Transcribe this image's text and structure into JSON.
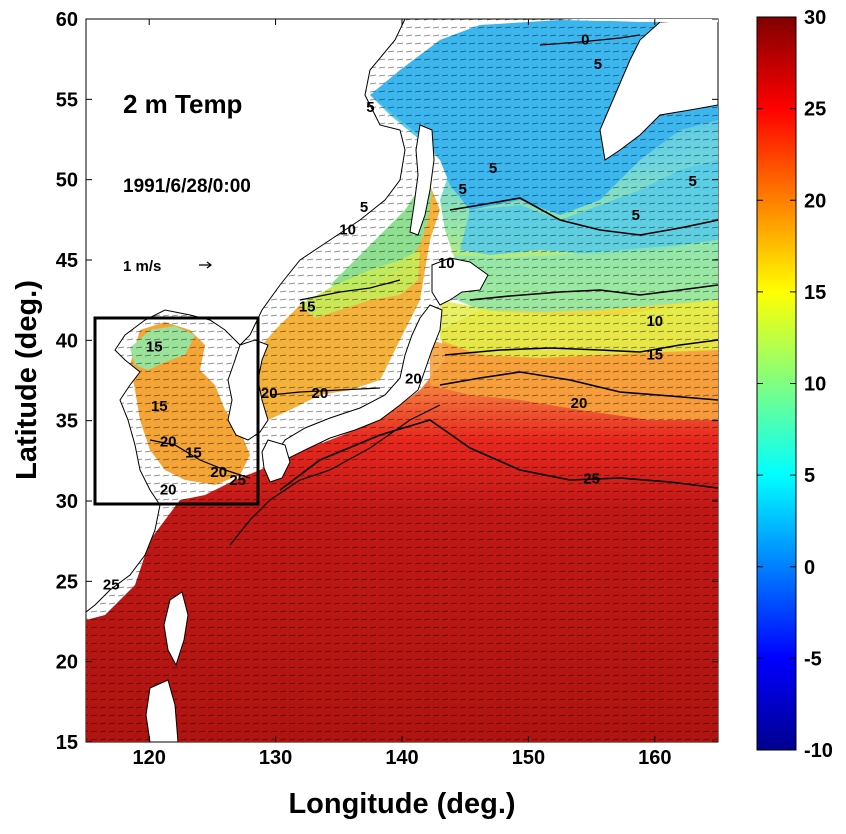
{
  "chart_data": {
    "type": "heatmap",
    "title": "2 m Temp",
    "subtitle": "1991/6/28/0:00",
    "xlabel": "Longitude (deg.)",
    "ylabel": "Latitude (deg.)",
    "xlim": [
      115,
      165
    ],
    "ylim": [
      15,
      60
    ],
    "xticks": [
      120,
      130,
      140,
      150,
      160
    ],
    "yticks": [
      15,
      20,
      25,
      30,
      35,
      40,
      45,
      50,
      55,
      60
    ],
    "vector_scale_label": "1 m/s",
    "colorbar": {
      "range": [
        -10,
        30
      ],
      "ticks": [
        -10,
        -5,
        0,
        5,
        10,
        15,
        20,
        25,
        30
      ],
      "colormap": "jet",
      "colors": [
        "#00008f",
        "#0000ff",
        "#00ffff",
        "#ffff00",
        "#ff0000",
        "#800000"
      ]
    },
    "contour_labels": [
      {
        "text": "0",
        "lon": 154.5,
        "lat": 58.4
      },
      {
        "text": "5",
        "lon": 155.5,
        "lat": 56.9
      },
      {
        "text": "5",
        "lon": 137.5,
        "lat": 54.2
      },
      {
        "text": "5",
        "lon": 147.2,
        "lat": 50.4
      },
      {
        "text": "5",
        "lon": 144.8,
        "lat": 49.1
      },
      {
        "text": "5",
        "lon": 163.0,
        "lat": 49.6
      },
      {
        "text": "5",
        "lon": 158.5,
        "lat": 47.5
      },
      {
        "text": "5",
        "lon": 137.0,
        "lat": 48.0
      },
      {
        "text": "10",
        "lon": 135.7,
        "lat": 46.6
      },
      {
        "text": "10",
        "lon": 143.5,
        "lat": 44.5
      },
      {
        "text": "10",
        "lon": 160.0,
        "lat": 40.9
      },
      {
        "text": "15",
        "lon": 132.5,
        "lat": 41.8
      },
      {
        "text": "15",
        "lon": 160.0,
        "lat": 38.8
      },
      {
        "text": "15",
        "lon": 120.4,
        "lat": 39.3
      },
      {
        "text": "15",
        "lon": 120.8,
        "lat": 35.6
      },
      {
        "text": "15",
        "lon": 123.5,
        "lat": 32.7
      },
      {
        "text": "20",
        "lon": 140.9,
        "lat": 37.3
      },
      {
        "text": "20",
        "lon": 154.0,
        "lat": 35.8
      },
      {
        "text": "20",
        "lon": 129.5,
        "lat": 36.4
      },
      {
        "text": "20",
        "lon": 133.5,
        "lat": 36.4
      },
      {
        "text": "20",
        "lon": 121.5,
        "lat": 33.4
      },
      {
        "text": "20",
        "lon": 125.5,
        "lat": 31.5
      },
      {
        "text": "20",
        "lon": 121.5,
        "lat": 30.4
      },
      {
        "text": "25",
        "lon": 127.0,
        "lat": 31.0
      },
      {
        "text": "25",
        "lon": 155.0,
        "lat": 31.1
      },
      {
        "text": "25",
        "lon": 117.0,
        "lat": 24.5
      }
    ]
  }
}
